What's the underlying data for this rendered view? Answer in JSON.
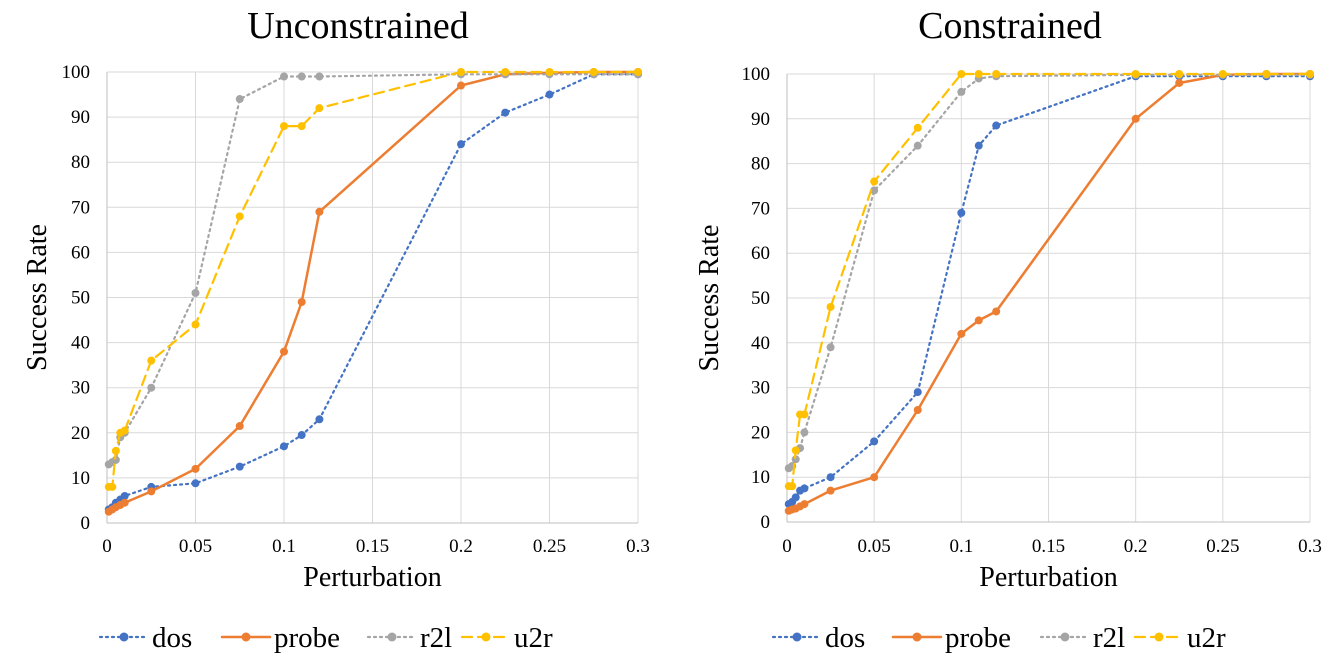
{
  "chart_data": [
    {
      "type": "line",
      "title": "Unconstrained",
      "xlabel": "Perturbation",
      "ylabel": "Success Rate",
      "xlim": [
        0,
        0.3
      ],
      "ylim": [
        0,
        100
      ],
      "xticks": [
        0,
        0.05,
        0.1,
        0.15,
        0.2,
        0.25,
        0.3
      ],
      "xtick_labels": [
        "0",
        "0.05",
        "0.1",
        "0.15",
        "0.2",
        "0.25",
        "0.3"
      ],
      "yticks": [
        0,
        10,
        20,
        30,
        40,
        50,
        60,
        70,
        80,
        90,
        100
      ],
      "ytick_labels": [
        "0",
        "10",
        "20",
        "30",
        "40",
        "50",
        "60",
        "70",
        "80",
        "90",
        "100"
      ],
      "grid": true,
      "legend": "bottom",
      "series": [
        {
          "name": "dos",
          "color": "#4472C4",
          "style": "dotted",
          "x": [
            0.001,
            0.003,
            0.005,
            0.0075,
            0.01,
            0.025,
            0.05,
            0.075,
            0.1,
            0.11,
            0.12,
            0.2,
            0.225,
            0.25,
            0.275,
            0.3
          ],
          "y": [
            3,
            3.5,
            4.5,
            5.2,
            6,
            8,
            8.8,
            12.5,
            17,
            19.5,
            23,
            84,
            91,
            95,
            99.5,
            99.5
          ]
        },
        {
          "name": "probe",
          "color": "#ED7D31",
          "style": "solid",
          "x": [
            0.001,
            0.003,
            0.005,
            0.0075,
            0.01,
            0.025,
            0.05,
            0.075,
            0.1,
            0.11,
            0.12,
            0.2,
            0.225,
            0.25,
            0.275,
            0.3
          ],
          "y": [
            2.5,
            3,
            3.5,
            4,
            4.5,
            7,
            12,
            21.5,
            38,
            49,
            69,
            97,
            99.5,
            99.8,
            100,
            100
          ]
        },
        {
          "name": "r2l",
          "color": "#A5A5A5",
          "style": "dotted",
          "x": [
            0.001,
            0.003,
            0.005,
            0.0075,
            0.01,
            0.025,
            0.05,
            0.075,
            0.1,
            0.11,
            0.12,
            0.2,
            0.225,
            0.25,
            0.275,
            0.3
          ],
          "y": [
            13,
            13.5,
            14,
            19,
            20,
            30,
            51,
            94,
            99,
            99,
            99,
            99.5,
            99.5,
            99.5,
            99.5,
            99.5
          ]
        },
        {
          "name": "u2r",
          "color": "#FFC000",
          "style": "dashed",
          "x": [
            0.001,
            0.003,
            0.005,
            0.0075,
            0.01,
            0.025,
            0.05,
            0.075,
            0.1,
            0.11,
            0.12,
            0.2,
            0.225,
            0.25,
            0.275,
            0.3
          ],
          "y": [
            8,
            8,
            16,
            20,
            20.5,
            36,
            44,
            68,
            88,
            88,
            92,
            100,
            100,
            100,
            100,
            100
          ]
        }
      ]
    },
    {
      "type": "line",
      "title": "Constrained",
      "xlabel": "Perturbation",
      "ylabel": "Success Rate",
      "xlim": [
        0,
        0.3
      ],
      "ylim": [
        0,
        100
      ],
      "xticks": [
        0,
        0.05,
        0.1,
        0.15,
        0.2,
        0.25,
        0.3
      ],
      "xtick_labels": [
        "0",
        "0.05",
        "0.1",
        "0.15",
        "0.2",
        "0.25",
        "0.3"
      ],
      "yticks": [
        0,
        10,
        20,
        30,
        40,
        50,
        60,
        70,
        80,
        90,
        100
      ],
      "ytick_labels": [
        "0",
        "10",
        "20",
        "30",
        "40",
        "50",
        "60",
        "70",
        "80",
        "90",
        "100"
      ],
      "grid": true,
      "legend": "bottom",
      "series": [
        {
          "name": "dos",
          "color": "#4472C4",
          "style": "dotted",
          "x": [
            0.001,
            0.003,
            0.005,
            0.0075,
            0.01,
            0.025,
            0.05,
            0.075,
            0.1,
            0.11,
            0.12,
            0.2,
            0.225,
            0.25,
            0.275,
            0.3
          ],
          "y": [
            4,
            4.5,
            5.5,
            7,
            7.5,
            10,
            18,
            29,
            69,
            84,
            88.5,
            99.5,
            99.5,
            99.5,
            99.5,
            99.5
          ]
        },
        {
          "name": "probe",
          "color": "#ED7D31",
          "style": "solid",
          "x": [
            0.001,
            0.003,
            0.005,
            0.0075,
            0.01,
            0.025,
            0.05,
            0.075,
            0.1,
            0.11,
            0.12,
            0.2,
            0.225,
            0.25,
            0.275,
            0.3
          ],
          "y": [
            2.5,
            2.8,
            3,
            3.5,
            4,
            7,
            10,
            25,
            42,
            45,
            47,
            90,
            98,
            99.8,
            100,
            100
          ]
        },
        {
          "name": "r2l",
          "color": "#A5A5A5",
          "style": "dotted",
          "x": [
            0.001,
            0.003,
            0.005,
            0.0075,
            0.01,
            0.025,
            0.05,
            0.075,
            0.1,
            0.11,
            0.12,
            0.2,
            0.225,
            0.25,
            0.275,
            0.3
          ],
          "y": [
            12,
            12.5,
            14,
            16.5,
            20,
            39,
            74,
            84,
            96,
            99,
            99.5,
            99.8,
            99.8,
            99.8,
            99.8,
            99.8
          ]
        },
        {
          "name": "u2r",
          "color": "#FFC000",
          "style": "dashed",
          "x": [
            0.001,
            0.003,
            0.005,
            0.0075,
            0.01,
            0.025,
            0.05,
            0.075,
            0.1,
            0.11,
            0.12,
            0.2,
            0.225,
            0.25,
            0.275,
            0.3
          ],
          "y": [
            8,
            8,
            16,
            24,
            24,
            48,
            76,
            88,
            100,
            100,
            100,
            100,
            100,
            100,
            100,
            100
          ]
        }
      ]
    }
  ]
}
